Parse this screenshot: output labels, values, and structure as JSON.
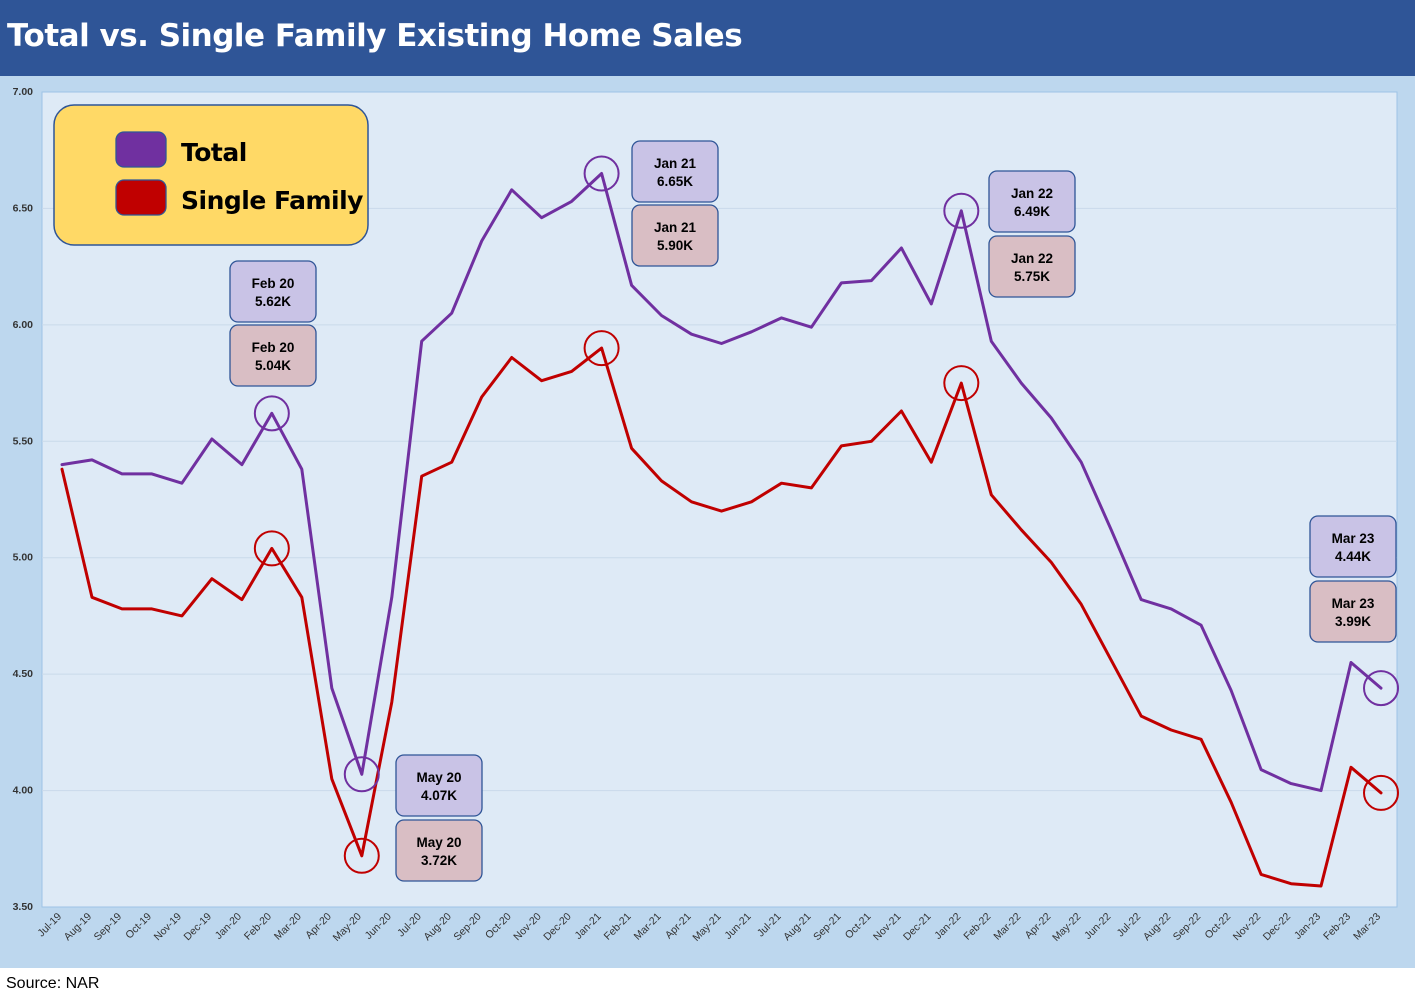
{
  "header": {
    "title": "Total vs. Single Family Existing Home Sales"
  },
  "footer": {
    "source": "Source: NAR"
  },
  "colors": {
    "total": "#7030a0",
    "single_family": "#c00000",
    "title_bar": "#2f5597",
    "frame": "#bdd7ee",
    "plot_bg": "#deeaf6",
    "legend_bg": "#ffd966",
    "callout_total_bg": "#c9c3e6",
    "callout_sf_bg": "#d9bec4"
  },
  "chart_data": {
    "type": "line",
    "title": "Total vs. Single Family Existing Home Sales",
    "xlabel": "",
    "ylabel": "",
    "ylim": [
      3.5,
      7.0
    ],
    "yticks": [
      "3.50",
      "4.00",
      "4.50",
      "5.00",
      "5.50",
      "6.00",
      "6.50",
      "7.00"
    ],
    "grid": true,
    "legend_position": "top-left",
    "categories": [
      "Jul-19",
      "Aug-19",
      "Sep-19",
      "Oct-19",
      "Nov-19",
      "Dec-19",
      "Jan-20",
      "Feb-20",
      "Mar-20",
      "Apr-20",
      "May-20",
      "Jun-20",
      "Jul-20",
      "Aug-20",
      "Sep-20",
      "Oct-20",
      "Nov-20",
      "Dec-20",
      "Jan-21",
      "Feb-21",
      "Mar-21",
      "Apr-21",
      "May-21",
      "Jun-21",
      "Jul-21",
      "Aug-21",
      "Sep-21",
      "Oct-21",
      "Nov-21",
      "Dec-21",
      "Jan-22",
      "Feb-22",
      "Mar-22",
      "Apr-22",
      "May-22",
      "Jun-22",
      "Jul-22",
      "Aug-22",
      "Sep-22",
      "Oct-22",
      "Nov-22",
      "Dec-22",
      "Jan-23",
      "Feb-23",
      "Mar-23"
    ],
    "series": [
      {
        "name": "Total",
        "values": [
          5.4,
          5.42,
          5.36,
          5.36,
          5.32,
          5.51,
          5.4,
          5.62,
          5.38,
          4.44,
          4.07,
          4.83,
          5.93,
          6.05,
          6.36,
          6.58,
          6.46,
          6.53,
          6.65,
          6.17,
          6.04,
          5.96,
          5.92,
          5.97,
          6.03,
          5.99,
          6.18,
          6.19,
          6.33,
          6.09,
          6.49,
          5.93,
          5.75,
          5.6,
          5.41,
          5.12,
          4.82,
          4.78,
          4.71,
          4.43,
          4.09,
          4.03,
          4.0,
          4.55,
          4.44
        ]
      },
      {
        "name": "Single Family",
        "values": [
          5.38,
          4.83,
          4.78,
          4.78,
          4.75,
          4.91,
          4.82,
          5.04,
          4.83,
          4.05,
          3.72,
          4.38,
          5.35,
          5.41,
          5.69,
          5.86,
          5.76,
          5.8,
          5.9,
          5.47,
          5.33,
          5.24,
          5.2,
          5.24,
          5.32,
          5.3,
          5.48,
          5.5,
          5.63,
          5.41,
          5.75,
          5.27,
          5.12,
          4.98,
          4.8,
          4.56,
          4.32,
          4.26,
          4.22,
          3.95,
          3.64,
          3.6,
          3.59,
          4.1,
          3.99
        ]
      }
    ],
    "callouts": [
      {
        "index": 7,
        "total": {
          "month": "Feb 20",
          "value": "5.62K"
        },
        "single_family": {
          "month": "Feb 20",
          "value": "5.04K"
        }
      },
      {
        "index": 10,
        "total": {
          "month": "May 20",
          "value": "4.07K"
        },
        "single_family": {
          "month": "May 20",
          "value": "3.72K"
        }
      },
      {
        "index": 18,
        "total": {
          "month": "Jan 21",
          "value": "6.65K"
        },
        "single_family": {
          "month": "Jan 21",
          "value": "5.90K"
        }
      },
      {
        "index": 30,
        "total": {
          "month": "Jan 22",
          "value": "6.49K"
        },
        "single_family": {
          "month": "Jan 22",
          "value": "5.75K"
        }
      },
      {
        "index": 44,
        "total": {
          "month": "Mar 23",
          "value": "4.44K"
        },
        "single_family": {
          "month": "Mar 23",
          "value": "3.99K"
        }
      }
    ]
  }
}
